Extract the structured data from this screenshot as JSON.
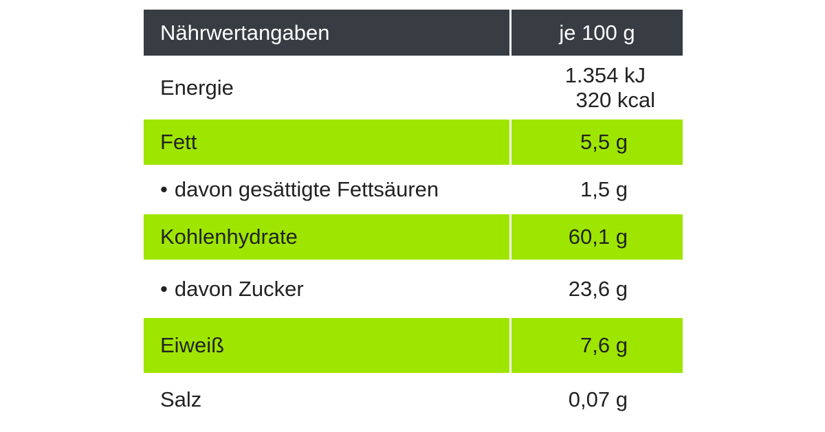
{
  "header": {
    "label": "Nährwertangaben",
    "value": "je 100 g"
  },
  "rows": [
    {
      "label": "Energie",
      "values": [
        "1.354 kJ",
        "320 kcal"
      ]
    },
    {
      "label": "Fett",
      "value": "5,5 g"
    },
    {
      "label": "davon gesättigte Fettsäuren",
      "value": "1,5 g",
      "bullet": "•"
    },
    {
      "label": "Kohlenhydrate",
      "value": "60,1 g"
    },
    {
      "label": "davon Zucker",
      "value": "23,6 g",
      "bullet": "•"
    },
    {
      "label": "Eiweiß",
      "value": "7,6 g"
    },
    {
      "label": "Salz",
      "value": "0,07 g"
    }
  ],
  "colors": {
    "header_bg": "#373d43",
    "highlight_bg": "#9ee600",
    "text": "#222222"
  }
}
